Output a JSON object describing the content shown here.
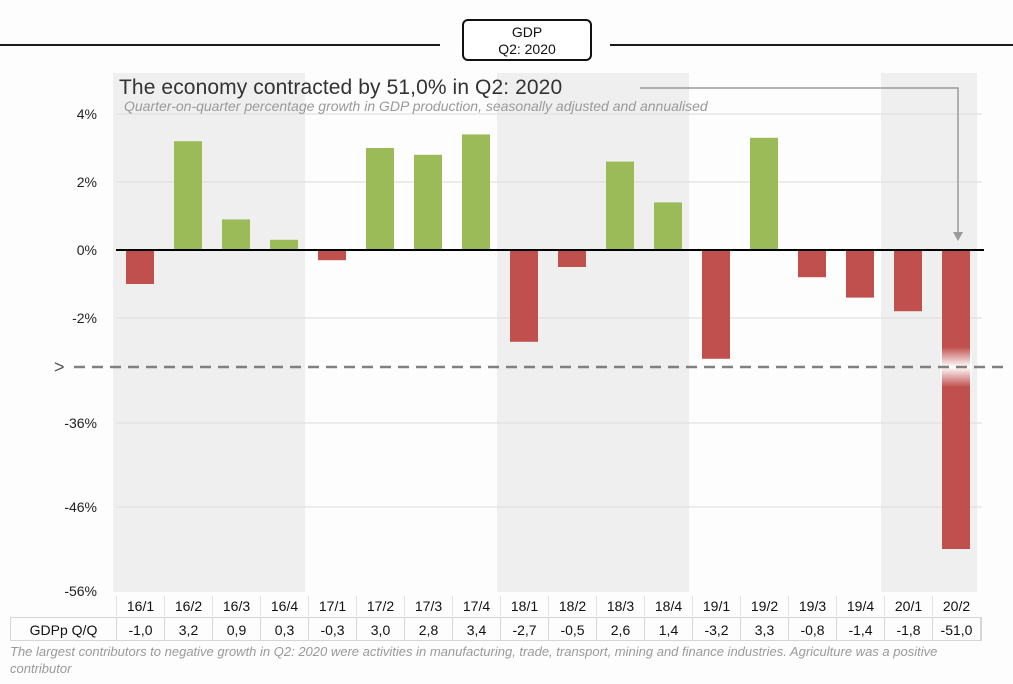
{
  "header": {
    "box_line1": "GDP",
    "box_line2": "Q2: 2020"
  },
  "headline": "The economy contracted by 51,0% in Q2: 2020",
  "subtitle": "Quarter-on-quarter percentage growth in GDP production, seasonally adjusted and annualised",
  "table": {
    "row_label": "GDPp Q/Q",
    "values_text": [
      "-1,0",
      "3,2",
      "0,9",
      "0,3",
      "-0,3",
      "3,0",
      "2,8",
      "3,4",
      "-2,7",
      "-0,5",
      "2,6",
      "1,4",
      "-3,2",
      "3,3",
      "-0,8",
      "-1,4",
      "-1,8",
      "-51,0"
    ]
  },
  "footnote": "The largest contributors to negative growth in Q2: 2020 were activities in manufacturing, trade, transport, mining and finance industries. Agriculture was a positive contributor",
  "colors": {
    "positive": "#9bbb59",
    "negative": "#c0504d",
    "band": "#efefef",
    "axis": "#000000"
  },
  "chart_data": {
    "type": "bar",
    "categories": [
      "16/1",
      "16/2",
      "16/3",
      "16/4",
      "17/1",
      "17/2",
      "17/3",
      "17/4",
      "18/1",
      "18/2",
      "18/3",
      "18/4",
      "19/1",
      "19/2",
      "19/3",
      "19/4",
      "20/1",
      "20/2"
    ],
    "values": [
      -1.0,
      3.2,
      0.9,
      0.3,
      -0.3,
      3.0,
      2.8,
      3.4,
      -2.7,
      -0.5,
      2.6,
      1.4,
      -3.2,
      3.3,
      -0.8,
      -1.4,
      -1.8,
      -51.0
    ],
    "y_tick_labels": [
      "4%",
      "2%",
      "0%",
      "-2%",
      "-36%",
      "-46%",
      "-56%"
    ],
    "axis_break_marker": ">",
    "axis_break": true,
    "grid": true,
    "year_bands": [
      "2016",
      "2017",
      "2018",
      "2019",
      "2020"
    ]
  }
}
